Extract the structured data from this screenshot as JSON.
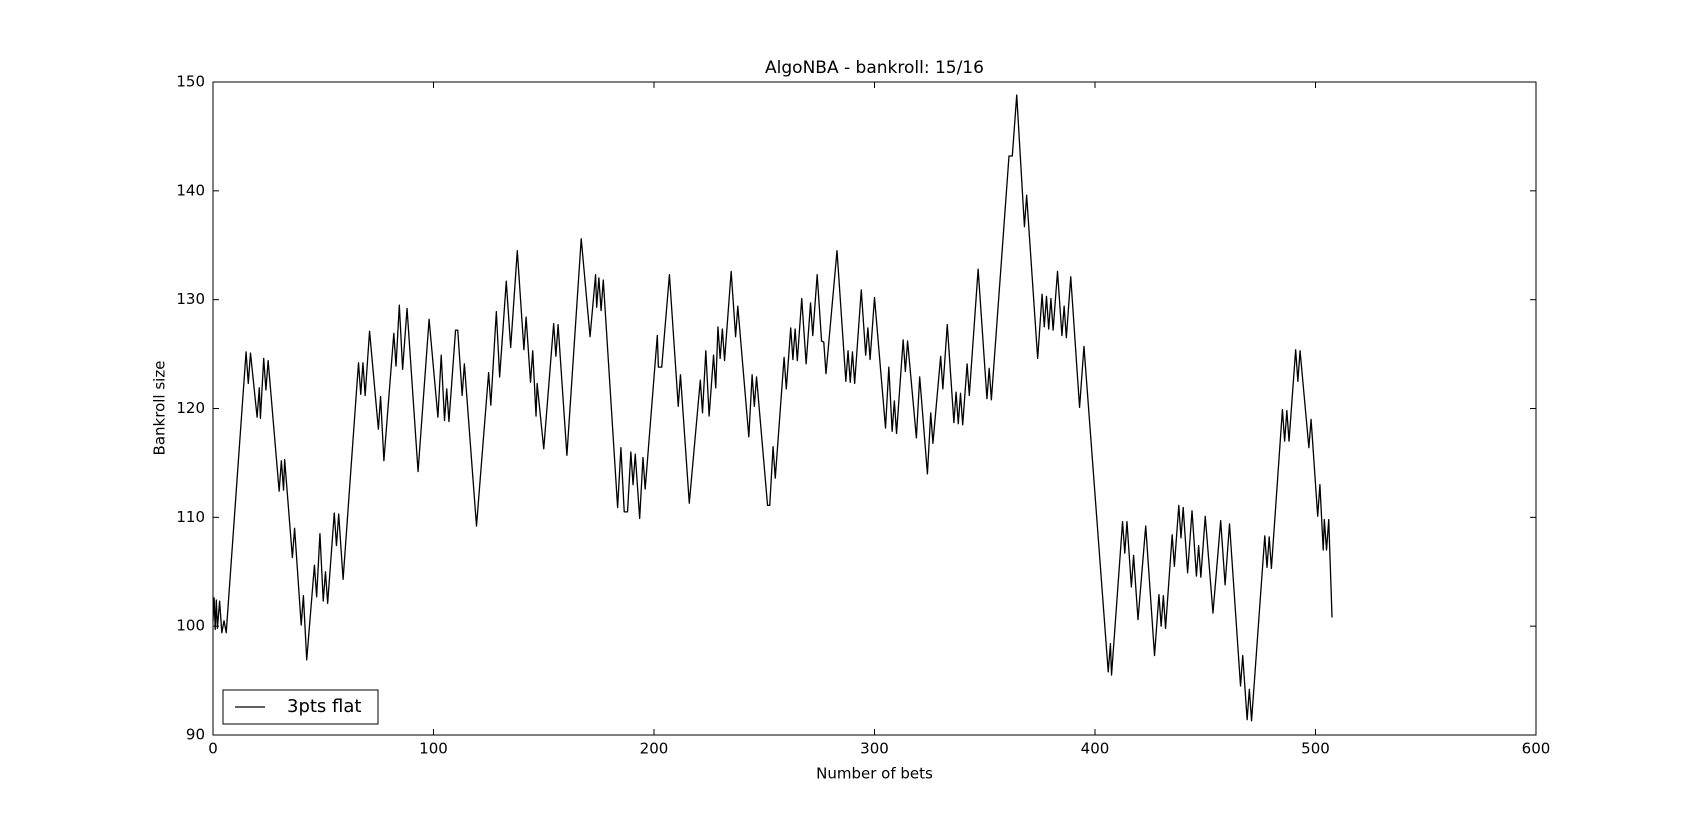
{
  "chart_data": {
    "type": "line",
    "title": "AlgoNBA - bankroll: 15/16",
    "x_label": "Number of bets",
    "y_label": "Bankroll size",
    "legend": "lower left",
    "xlim": [
      0,
      600
    ],
    "xticks": [
      0,
      100,
      200,
      300,
      400,
      500,
      600
    ],
    "ylim": [
      90,
      150
    ],
    "yticks": [
      90,
      100,
      110,
      120,
      130,
      140,
      150
    ],
    "series": [
      {
        "name": "3pts flat",
        "color": "#000000",
        "x": [
          0,
          0.5,
          1,
          1.5,
          2,
          3,
          4,
          5,
          6,
          15,
          16,
          17,
          20,
          21,
          21.5,
          23,
          24,
          25,
          30,
          31,
          32,
          32.5,
          36,
          37,
          40,
          41,
          42.5,
          46,
          47,
          48.5,
          50,
          51,
          52,
          55,
          56,
          57,
          59,
          65,
          66,
          67,
          68,
          69,
          71,
          75,
          76,
          77.5,
          82,
          83,
          84.5,
          86,
          88,
          93,
          98,
          102,
          103.5,
          105,
          106,
          107,
          110,
          111,
          113,
          114,
          119.5,
          125,
          126,
          128.5,
          130,
          133,
          135,
          138,
          141,
          142,
          144,
          145,
          146.5,
          147,
          150,
          154.5,
          155.5,
          156.5,
          160.5,
          167,
          171,
          173.5,
          174,
          175,
          176,
          177,
          183.5,
          185,
          186.5,
          188,
          189.5,
          190.5,
          191.5,
          193.5,
          195,
          196,
          201.5,
          202,
          203.5,
          207,
          211,
          212,
          216,
          221,
          222,
          223.5,
          225,
          227,
          228,
          229,
          230,
          231,
          232,
          235,
          237,
          238,
          243,
          244.5,
          245.5,
          246.5,
          251.5,
          252.5,
          254,
          255,
          259,
          260,
          262,
          263,
          264,
          265,
          267,
          269,
          271,
          272,
          274,
          276,
          277,
          278,
          283,
          287,
          288,
          289,
          290,
          291,
          294,
          296,
          297,
          298,
          300,
          305,
          306.5,
          308,
          309,
          310,
          313,
          314,
          315,
          319,
          320.5,
          324,
          325.5,
          326.5,
          330,
          331,
          333,
          336,
          337,
          338,
          339,
          340,
          342,
          343,
          347,
          351,
          352,
          353,
          361,
          362.5,
          364.5,
          368,
          369,
          374,
          376,
          377,
          378,
          379,
          380,
          381,
          383,
          385,
          386,
          387,
          389,
          393,
          395,
          406,
          407,
          407.5,
          412.5,
          413.5,
          414.5,
          416.5,
          417.5,
          419.5,
          423,
          427,
          429,
          430,
          431,
          432,
          435,
          436,
          438,
          439,
          440,
          442,
          444,
          446,
          447,
          448,
          450,
          453.5,
          457,
          459,
          461,
          466,
          467,
          469,
          470,
          471,
          477,
          478,
          479,
          480,
          485,
          486,
          487,
          488,
          491,
          492,
          493,
          497,
          498,
          501,
          502,
          503.5,
          504,
          505,
          506,
          507.5
        ],
        "values": [
          100.5,
          102.6,
          99.7,
          102.4,
          99.8,
          102.3,
          99.4,
          100.5,
          99.4,
          125.2,
          122.3,
          125.1,
          119.2,
          121.9,
          119.1,
          124.6,
          121.7,
          124.4,
          112.4,
          115.2,
          112.5,
          115.3,
          106.3,
          109.0,
          100.1,
          102.8,
          96.9,
          105.6,
          102.7,
          108.5,
          102.3,
          105.0,
          102.1,
          110.4,
          107.4,
          110.3,
          104.3,
          121.4,
          124.2,
          121.3,
          124.2,
          121.2,
          127.1,
          118.1,
          121.1,
          115.2,
          126.9,
          123.9,
          129.5,
          123.6,
          129.2,
          114.2,
          128.2,
          119.2,
          124.9,
          118.9,
          121.8,
          118.8,
          127.2,
          127.2,
          121.2,
          124.1,
          109.2,
          123.3,
          120.3,
          128.9,
          122.9,
          131.7,
          125.6,
          134.5,
          125.4,
          128.4,
          122.4,
          125.3,
          119.3,
          122.3,
          116.3,
          127.8,
          124.8,
          127.7,
          115.7,
          135.6,
          126.6,
          132.3,
          129.3,
          132.0,
          129.0,
          131.8,
          110.9,
          116.4,
          110.5,
          110.5,
          116.0,
          113.0,
          115.8,
          109.9,
          115.5,
          112.6,
          126.7,
          123.8,
          123.8,
          132.3,
          120.2,
          123.1,
          111.3,
          122.6,
          119.6,
          125.3,
          119.3,
          124.9,
          121.9,
          127.5,
          124.6,
          127.3,
          124.4,
          132.6,
          126.6,
          129.4,
          117.4,
          123.1,
          120.2,
          122.9,
          111.1,
          111.1,
          116.5,
          113.6,
          124.7,
          121.8,
          127.4,
          124.5,
          127.3,
          124.4,
          130.1,
          124.1,
          129.7,
          126.7,
          132.3,
          126.2,
          126.1,
          123.2,
          134.5,
          122.5,
          125.3,
          122.4,
          125.2,
          122.3,
          130.9,
          124.9,
          127.4,
          124.5,
          130.2,
          118.2,
          123.8,
          117.9,
          120.7,
          117.7,
          126.3,
          123.4,
          126.2,
          117.3,
          122.9,
          114.0,
          119.6,
          116.8,
          124.8,
          121.8,
          127.7,
          118.7,
          121.5,
          118.6,
          121.4,
          118.5,
          124.1,
          121.2,
          132.8,
          120.9,
          123.7,
          120.8,
          143.2,
          143.2,
          148.8,
          136.7,
          139.6,
          124.6,
          130.5,
          127.5,
          130.3,
          127.3,
          130.1,
          127.2,
          132.6,
          126.7,
          129.4,
          126.5,
          132.1,
          120.1,
          125.7,
          95.8,
          98.4,
          95.5,
          109.6,
          106.7,
          109.6,
          103.6,
          106.5,
          100.6,
          109.2,
          97.3,
          102.9,
          100.0,
          102.8,
          99.8,
          108.4,
          105.5,
          111.1,
          108.1,
          110.9,
          104.9,
          110.6,
          104.6,
          107.4,
          104.5,
          110.1,
          101.2,
          109.7,
          103.8,
          109.4,
          94.5,
          97.3,
          91.4,
          94.2,
          91.3,
          108.3,
          105.4,
          108.2,
          105.3,
          119.9,
          117.0,
          119.8,
          117.0,
          125.4,
          122.5,
          125.3,
          116.4,
          119.0,
          110.1,
          113.0,
          107.0,
          109.8,
          107.0,
          109.8,
          100.8
        ]
      }
    ]
  }
}
